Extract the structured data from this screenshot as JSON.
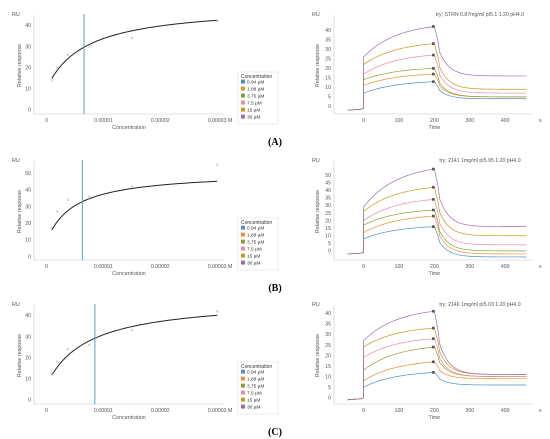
{
  "chart_data": [
    {
      "panel": "A",
      "panel_label": "(A)",
      "affinity": {
        "type": "scatter",
        "yunit": "RU",
        "ylabel": "Relative response",
        "xlabel": "Concentration",
        "xunit": "M",
        "xlim": [
          -1.5e-06,
          3.05e-05
        ],
        "ylim": [
          -2,
          44
        ],
        "xticks": [
          0,
          1e-05,
          2e-05,
          3e-05
        ],
        "xtick_labels": [
          "0",
          "0.00001",
          "0.00002",
          "0.00003"
        ],
        "yticks": [
          0,
          10,
          20,
          30,
          40
        ],
        "points": [
          {
            "x": 9.4e-07,
            "y": 14
          },
          {
            "x": 1.88e-06,
            "y": 20
          },
          {
            "x": 3.75e-06,
            "y": 26
          },
          {
            "x": 7.5e-06,
            "y": 30
          },
          {
            "x": 1.5e-05,
            "y": 34
          },
          {
            "x": 3e-05,
            "y": 42
          }
        ],
        "fit": {
          "Rmax": 49.7,
          "KD": 6.7e-06,
          "offset": 10
        },
        "kd_line_x": 6.6e-06,
        "legend_title": "Concentration",
        "legend": [
          "0.94 µM",
          "1.88 µM",
          "3.75 µM",
          "7.5 µM",
          "15 µM",
          "30 µM"
        ]
      },
      "sensorgram": {
        "type": "line",
        "title": "try; STRN 0.87mg/ml pI5.1 1:20 pH4.0",
        "yunit": "RU",
        "ylabel": "Relative response",
        "xlabel": "Time",
        "xunit": "s",
        "xlim": [
          -75,
          470
        ],
        "ylim": [
          -4,
          47
        ],
        "xticks": [
          0,
          100,
          200,
          300,
          400
        ],
        "yticks": [
          0,
          5,
          10,
          15,
          20,
          25,
          30,
          35,
          40
        ],
        "baseline": -2,
        "curves": [
          {
            "a0": 7,
            "a200": 13,
            "dr": 9
          },
          {
            "a0": 11,
            "a200": 17,
            "dr": 12
          },
          {
            "a0": 14,
            "a200": 20,
            "dr": 15
          },
          {
            "a0": 17,
            "a200": 27,
            "dr": 20
          },
          {
            "a0": 22,
            "a200": 33,
            "dr": 24
          },
          {
            "a0": 26,
            "a200": 42,
            "dr": 26
          }
        ]
      }
    },
    {
      "panel": "B",
      "panel_label": "(B)",
      "affinity": {
        "type": "scatter",
        "yunit": "RU",
        "ylabel": "Relative response",
        "xlabel": "Concentration",
        "xunit": "M",
        "xlim": [
          -1.5e-06,
          3.05e-05
        ],
        "ylim": [
          -2,
          56
        ],
        "xticks": [
          0,
          1e-05,
          2e-05,
          3e-05
        ],
        "xtick_labels": [
          "0",
          "0.00001",
          "0.00002",
          "0.00003"
        ],
        "yticks": [
          0,
          10,
          20,
          30,
          40,
          50
        ],
        "points": [
          {
            "x": 9.4e-07,
            "y": 17
          },
          {
            "x": 1.88e-06,
            "y": 27
          },
          {
            "x": 3.75e-06,
            "y": 34
          },
          {
            "x": 7.5e-06,
            "y": 36
          },
          {
            "x": 1.5e-05,
            "y": 42
          },
          {
            "x": 3e-05,
            "y": 55
          }
        ],
        "fit": {
          "Rmax": 50.7,
          "KD": 4.7e-06,
          "offset": 9
        },
        "kd_line_x": 6.3e-06,
        "legend_title": "Concentration",
        "legend": [
          "0.94 µM",
          "1.88 µM",
          "3.75 µM",
          "7.5 µM",
          "15 µM",
          "30 µM"
        ]
      },
      "sensorgram": {
        "type": "line",
        "title": "try; 2141 1mg/ml pI5.95 1:20 pH4.0",
        "yunit": "RU",
        "ylabel": "Relative response",
        "xlabel": "Time",
        "xunit": "s",
        "xlim": [
          -75,
          470
        ],
        "ylim": [
          -6,
          58
        ],
        "xticks": [
          0,
          100,
          200,
          300,
          400
        ],
        "yticks": [
          0,
          5,
          10,
          15,
          20,
          25,
          30,
          35,
          40,
          45,
          50
        ],
        "baseline": -2,
        "curves": [
          {
            "a0": 8,
            "a200": 16,
            "dr": 20
          },
          {
            "a0": 12,
            "a200": 23,
            "dr": 25
          },
          {
            "a0": 17,
            "a200": 27,
            "dr": 27
          },
          {
            "a0": 20,
            "a200": 34,
            "dr": 30
          },
          {
            "a0": 26,
            "a200": 42,
            "dr": 32
          },
          {
            "a0": 29,
            "a200": 54,
            "dr": 38
          }
        ]
      }
    },
    {
      "panel": "C",
      "panel_label": "(C)",
      "affinity": {
        "type": "scatter",
        "yunit": "RU",
        "ylabel": "Relative response",
        "xlabel": "Concentration",
        "xunit": "M",
        "xlim": [
          -1.5e-06,
          3.05e-05
        ],
        "ylim": [
          -2,
          44
        ],
        "xticks": [
          0,
          1e-05,
          2e-05,
          3e-05
        ],
        "xtick_labels": [
          "0",
          "0.00001",
          "0.00002",
          "0.00003"
        ],
        "yticks": [
          0,
          10,
          20,
          30,
          40
        ],
        "points": [
          {
            "x": 9.4e-07,
            "y": 12
          },
          {
            "x": 1.88e-06,
            "y": 18
          },
          {
            "x": 3.75e-06,
            "y": 24
          },
          {
            "x": 7.5e-06,
            "y": 26
          },
          {
            "x": 1.5e-05,
            "y": 33
          },
          {
            "x": 3e-05,
            "y": 42
          }
        ],
        "fit": {
          "Rmax": 48,
          "KD": 7.2e-06,
          "offset": 7
        },
        "kd_line_x": 8.5e-06,
        "legend_title": "Concentration",
        "legend": [
          "0.94 µM",
          "1.88 µM",
          "3.75 µM",
          "7.5 µM",
          "15 µM",
          "30 µM"
        ]
      },
      "sensorgram": {
        "type": "line",
        "title": "try; 2146 1mg/ml pI5.03 1:20 pH4.0",
        "yunit": "RU",
        "ylabel": "Relative response",
        "xlabel": "Time",
        "xunit": "s",
        "xlim": [
          -75,
          470
        ],
        "ylim": [
          -3,
          43
        ],
        "xticks": [
          0,
          100,
          200,
          300,
          400
        ],
        "yticks": [
          0,
          5,
          10,
          15,
          20,
          25,
          30,
          35,
          40
        ],
        "baseline": -1,
        "curves": [
          {
            "a0": 5,
            "a200": 12,
            "dr": 6
          },
          {
            "a0": 8,
            "a200": 17,
            "dr": 8
          },
          {
            "a0": 13,
            "a200": 24,
            "dr": 14
          },
          {
            "a0": 19,
            "a200": 28,
            "dr": 18
          },
          {
            "a0": 24,
            "a200": 33,
            "dr": 22
          },
          {
            "a0": 27,
            "a200": 41,
            "dr": 30
          }
        ]
      }
    }
  ],
  "colors": {
    "series": [
      "#4e8ec6",
      "#ee8f2c",
      "#8a9f3a",
      "#e88ca0",
      "#c99a1a",
      "#9a6fb0"
    ],
    "fit_line": "#222222",
    "kd_line": "#5a9cd0",
    "point": "#9a9a9a",
    "marker": "#555555"
  }
}
